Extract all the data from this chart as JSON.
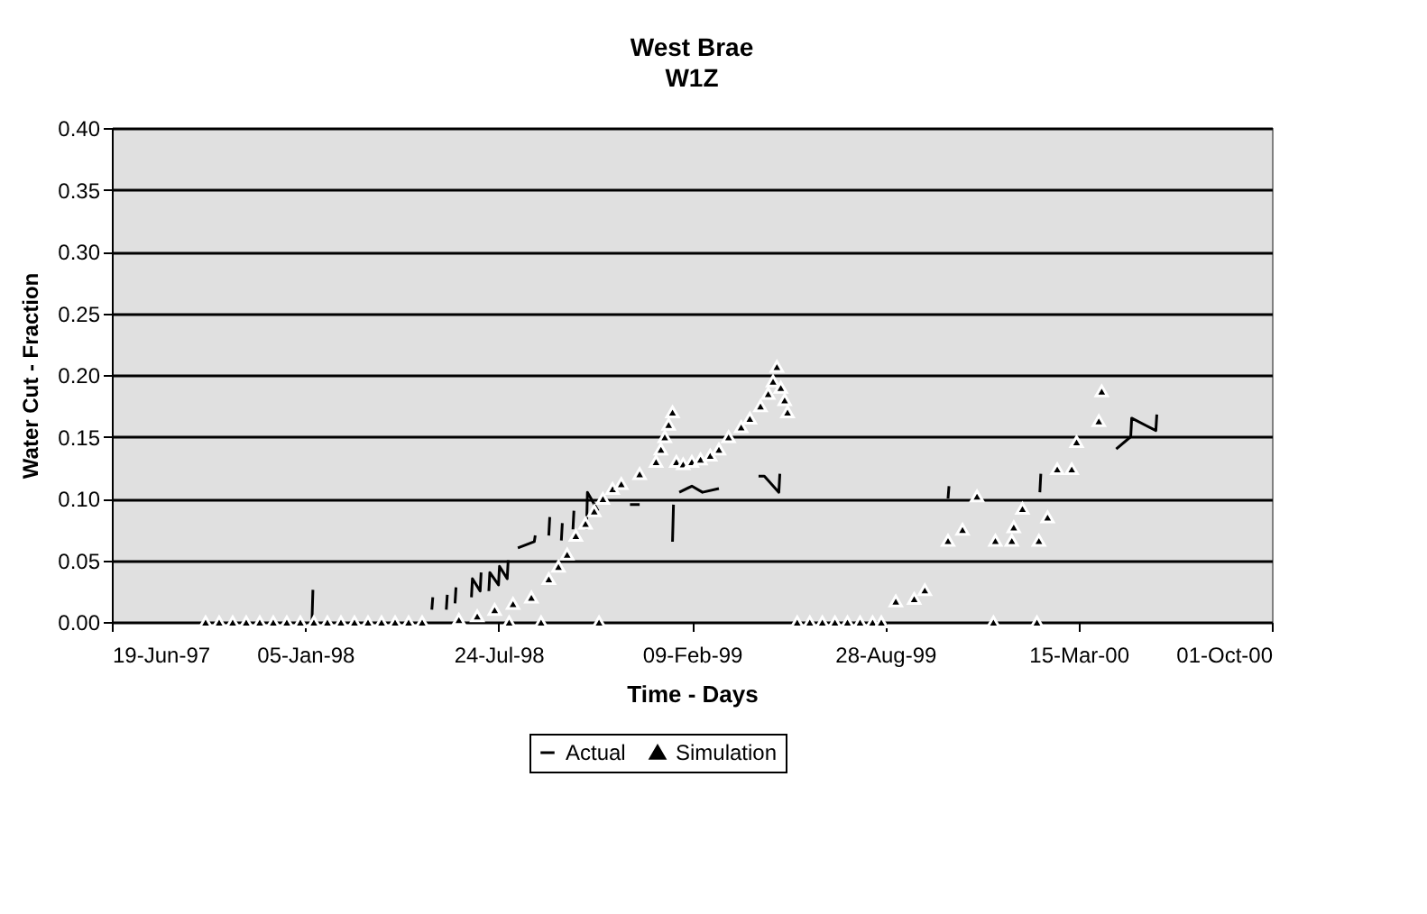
{
  "chart_data": {
    "type": "line",
    "title": "West Brae",
    "subtitle": "W1Z",
    "xlabel": "Time - Days",
    "ylabel": "Water Cut - Fraction",
    "xlim": [
      "1997-06-19",
      "2000-10-01"
    ],
    "xticks": [
      {
        "value": "1997-06-19",
        "label": "19-Jun-97"
      },
      {
        "value": "1998-01-05",
        "label": "05-Jan-98"
      },
      {
        "value": "1998-07-24",
        "label": "24-Jul-98"
      },
      {
        "value": "1999-02-09",
        "label": "09-Feb-99"
      },
      {
        "value": "1999-08-28",
        "label": "28-Aug-99"
      },
      {
        "value": "2000-03-15",
        "label": "15-Mar-00"
      },
      {
        "value": "2000-10-01",
        "label": "01-Oct-00"
      }
    ],
    "ylim": [
      0,
      0.4
    ],
    "yticks": [
      {
        "value": 0,
        "label": "0.00"
      },
      {
        "value": 0.05,
        "label": "0.05"
      },
      {
        "value": 0.1,
        "label": "0.10"
      },
      {
        "value": 0.15,
        "label": "0.15"
      },
      {
        "value": 0.2,
        "label": "0.20"
      },
      {
        "value": 0.25,
        "label": "0.25"
      },
      {
        "value": 0.3,
        "label": "0.30"
      },
      {
        "value": 0.35,
        "label": "0.35"
      },
      {
        "value": 0.4,
        "label": "0.40"
      }
    ],
    "grid": "y",
    "legend": "bottom",
    "series": [
      {
        "name": "Actual",
        "color": "#000000",
        "line_style": "solid",
        "x": [
          "1998-01-12",
          "1998-01-13",
          "1998-01-14",
          "1998-05-16",
          "1998-05-17",
          "1998-05-18",
          "1998-05-31",
          "1998-06-01",
          "1998-06-02",
          "1998-06-09",
          "1998-06-10",
          "1998-06-11",
          "1998-06-26",
          "1998-06-27",
          "1998-07-05",
          "1998-07-06",
          "1998-07-07",
          "1998-07-14",
          "1998-07-15",
          "1998-07-24",
          "1998-07-25",
          "1998-08-02",
          "1998-08-03",
          "1998-08-04",
          "1998-08-13",
          "1998-08-30",
          "1998-08-31",
          "1998-09-01",
          "1998-09-14",
          "1998-09-15",
          "1998-09-16",
          "1998-09-27",
          "1998-09-28",
          "1998-09-29",
          "1998-10-09",
          "1998-10-10",
          "1998-10-11",
          "1998-10-23",
          "1998-10-24",
          "1998-11-04",
          "1998-11-05",
          "1998-12-07",
          "1998-12-17",
          "1998-12-18",
          "1999-01-20",
          "1999-01-21",
          "1999-01-22",
          "1999-01-27",
          "1999-02-09",
          "1999-02-20",
          "1999-03-09",
          "1999-03-10",
          "1999-04-19",
          "1999-04-25",
          "1999-05-10",
          "1999-05-11",
          "1999-05-12",
          "1999-11-01",
          "1999-11-02",
          "1999-11-03",
          "2000-02-04",
          "2000-02-05",
          "2000-02-06",
          "2000-04-23",
          "2000-05-08",
          "2000-05-09",
          "2000-06-03",
          "2000-06-04"
        ],
        "values": [
          0,
          0.026,
          null,
          0.01,
          0.02,
          null,
          0.01,
          0.022,
          null,
          0.015,
          0.028,
          null,
          0.02,
          0.035,
          0.025,
          0.04,
          null,
          0.025,
          0.04,
          0.03,
          0.045,
          0.035,
          0.05,
          null,
          0.06,
          0.065,
          0.07,
          null,
          0.07,
          0.085,
          null,
          0.066,
          0.08,
          null,
          0.075,
          0.09,
          null,
          0.075,
          0.105,
          0.09,
          null,
          0.095,
          0.095,
          null,
          0.065,
          0.095,
          null,
          0.105,
          0.11,
          0.105,
          0.108,
          null,
          0.118,
          0.118,
          0.105,
          0.12,
          null,
          0.1,
          0.11,
          null,
          0.105,
          0.12,
          null,
          0.14,
          0.15,
          0.165,
          0.155,
          0.168
        ]
      },
      {
        "name": "Simulation",
        "type": "scatter",
        "color": "#000000",
        "marker": "triangle",
        "x": [
          "1997-09-24",
          "1997-10-08",
          "1997-10-22",
          "1997-11-05",
          "1997-11-19",
          "1997-12-03",
          "1997-12-17",
          "1997-12-31",
          "1998-01-14",
          "1998-01-28",
          "1998-02-11",
          "1998-02-25",
          "1998-03-11",
          "1998-03-25",
          "1998-04-08",
          "1998-04-22",
          "1998-05-06",
          "1998-06-13",
          "1998-07-02",
          "1998-07-20",
          "1998-08-04",
          "1998-08-08",
          "1998-08-27",
          "1998-09-06",
          "1998-09-14",
          "1998-09-24",
          "1998-10-03",
          "1998-10-12",
          "1998-10-22",
          "1998-10-31",
          "1998-11-05",
          "1998-11-09",
          "1998-11-19",
          "1998-11-28",
          "1998-12-17",
          "1999-01-03",
          "1999-01-08",
          "1999-01-12",
          "1999-01-16",
          "1999-01-20",
          "1999-01-24",
          "1999-01-31",
          "1999-02-09",
          "1999-02-18",
          "1999-02-28",
          "1999-03-09",
          "1999-03-19",
          "1999-04-01",
          "1999-04-10",
          "1999-04-21",
          "1999-04-29",
          "1999-05-04",
          "1999-05-08",
          "1999-05-12",
          "1999-05-16",
          "1999-05-19",
          "1999-05-29",
          "1999-06-11",
          "1999-06-24",
          "1999-07-07",
          "1999-07-20",
          "1999-08-02",
          "1999-08-15",
          "1999-08-24",
          "1999-09-08",
          "1999-09-27",
          "1999-10-08",
          "1999-11-01",
          "1999-11-16",
          "1999-12-01",
          "1999-12-18",
          "1999-12-20",
          "2000-01-06",
          "2000-01-08",
          "2000-01-17",
          "2000-02-01",
          "2000-02-03",
          "2000-02-12",
          "2000-02-22",
          "2000-03-08",
          "2000-03-13",
          "2000-04-05",
          "2000-04-08"
        ],
        "values": [
          0,
          0,
          0,
          0,
          0,
          0,
          0,
          0,
          0,
          0,
          0,
          0,
          0,
          0,
          0,
          0,
          0,
          0.002,
          0.005,
          0.01,
          0,
          0.015,
          0.02,
          0,
          0.035,
          0.045,
          0.055,
          0.07,
          0.08,
          0.09,
          0,
          0.1,
          0.108,
          0.112,
          0.12,
          0.13,
          0.14,
          0.15,
          0.16,
          0.17,
          0.13,
          0.128,
          0.13,
          0.132,
          0.135,
          0.14,
          0.15,
          0.158,
          0.165,
          0.175,
          0.185,
          0.195,
          0.207,
          0.19,
          0.18,
          0.17,
          0,
          0,
          0,
          0,
          0,
          0,
          0,
          0,
          0.017,
          0.019,
          0.026,
          0.066,
          0.075,
          0.102,
          0,
          0.066,
          0.066,
          0.077,
          0.092,
          0,
          0.066,
          0.085,
          0.124,
          0.124,
          0.146,
          0.163,
          0.187
        ]
      }
    ]
  }
}
